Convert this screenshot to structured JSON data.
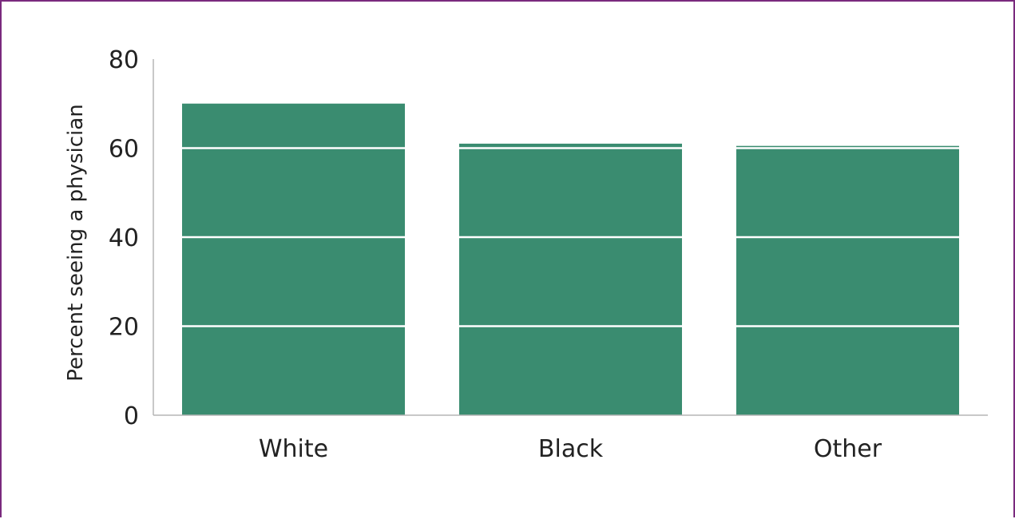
{
  "chart_data": {
    "type": "bar",
    "title": "",
    "xlabel": "",
    "ylabel": "Percent seeing a physician",
    "categories": [
      "White",
      "Black",
      "Other"
    ],
    "values": [
      70,
      61,
      60.5
    ],
    "ylim": [
      0,
      80
    ],
    "yticks": [
      "0",
      "20",
      "40",
      "60",
      "80"
    ],
    "grid": "white gridlines drawn over bars",
    "legend": "none"
  },
  "colors": {
    "bar": "#3a8c70",
    "frame": "#7a2a7e",
    "axis": "#b5b5b5",
    "gridline": "#ffffff"
  }
}
